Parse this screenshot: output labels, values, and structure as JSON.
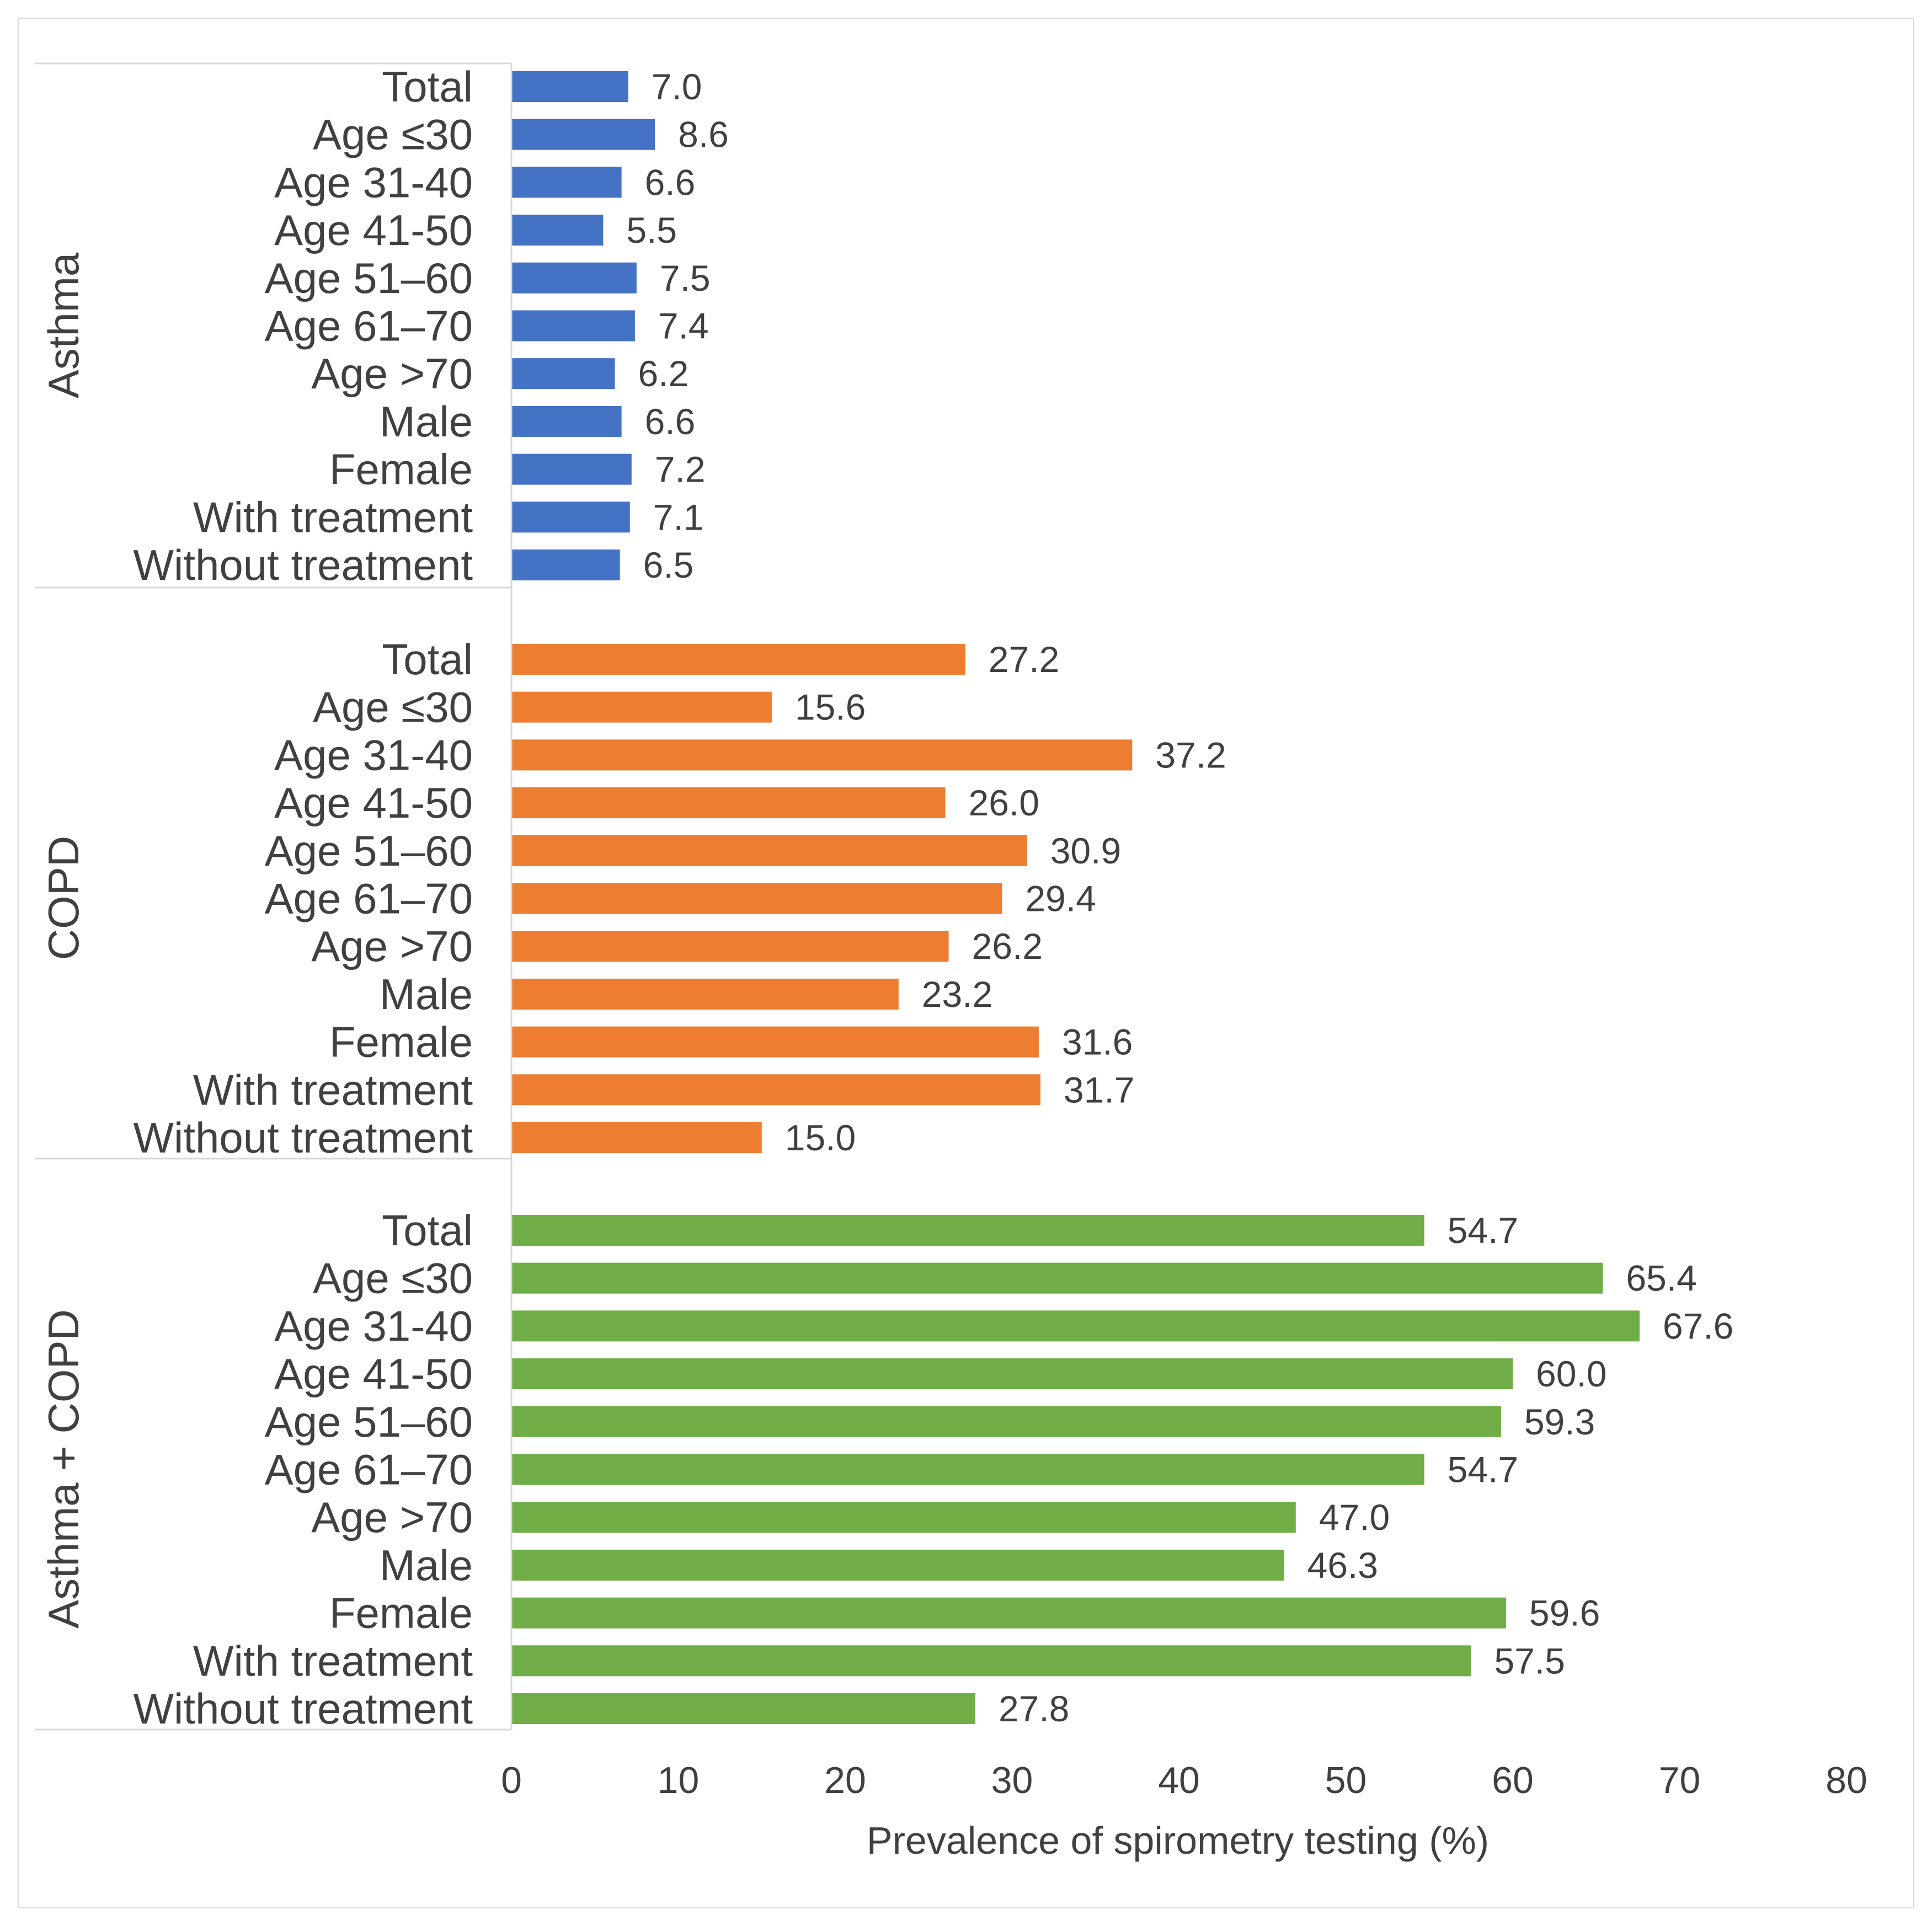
{
  "chart_data": {
    "type": "bar",
    "orientation": "horizontal",
    "xlabel": "Prevalence  of spirometry testing (%)",
    "xlim": [
      0,
      80
    ],
    "xticks": [
      0,
      10,
      20,
      30,
      40,
      50,
      60,
      70,
      80
    ],
    "grid": false,
    "categories": [
      "Total",
      "Age ≤30",
      "Age 31-40",
      "Age 41-50",
      "Age 51–60",
      "Age 61–70",
      "Age >70",
      "Male",
      "Female",
      "With treatment",
      "Without treatment"
    ],
    "groups": [
      {
        "name": "Asthma",
        "color": "#4472c4",
        "values": [
          7.0,
          8.6,
          6.6,
          5.5,
          7.5,
          7.4,
          6.2,
          6.6,
          7.2,
          7.1,
          6.5
        ]
      },
      {
        "name": "COPD",
        "color": "#ed7d31",
        "values": [
          27.2,
          15.6,
          37.2,
          26.0,
          30.9,
          29.4,
          26.2,
          23.2,
          31.6,
          31.7,
          15.0
        ]
      },
      {
        "name": "Asthma + COPD",
        "color": "#70ad47",
        "values": [
          54.7,
          65.4,
          67.6,
          60.0,
          59.3,
          54.7,
          47.0,
          46.3,
          59.6,
          57.5,
          27.8
        ]
      }
    ]
  }
}
